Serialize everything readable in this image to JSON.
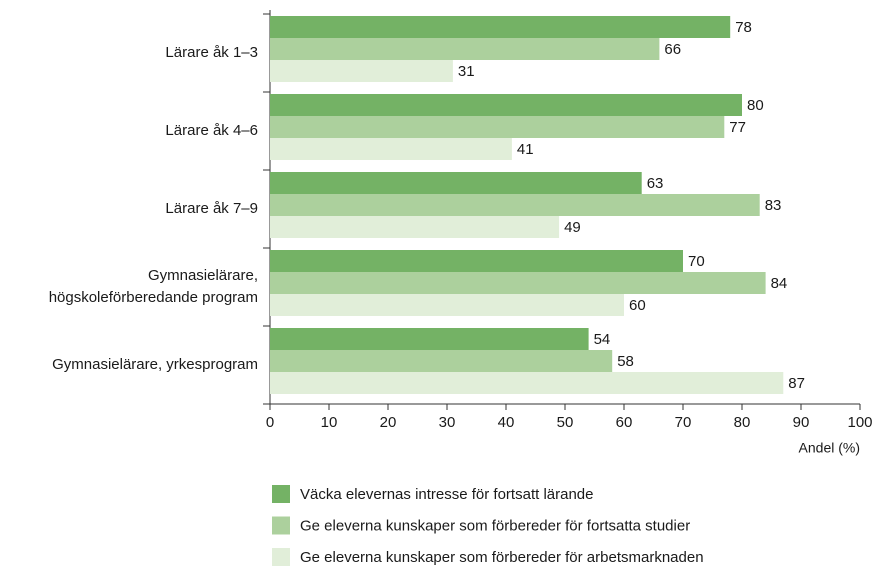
{
  "chart_data": {
    "type": "bar",
    "orientation": "horizontal",
    "categories": [
      "Lärare åk 1–3",
      "Lärare åk 4–6",
      "Lärare åk 7–9",
      "Gymnasielärare,\nhögskoleförberedande program",
      "Gymnasielärare, yrkesprogram"
    ],
    "series": [
      {
        "name": "Väcka elevernas intresse för fortsatt lärande",
        "color": "#74b265",
        "values": [
          78,
          80,
          63,
          70,
          54
        ]
      },
      {
        "name": "Ge eleverna kunskaper som förbereder för fortsatta studier",
        "color": "#acd09d",
        "values": [
          66,
          77,
          83,
          84,
          58
        ]
      },
      {
        "name": "Ge eleverna kunskaper som förbereder för arbetsmarknaden",
        "color": "#e1eed9",
        "values": [
          31,
          41,
          49,
          60,
          87
        ]
      }
    ],
    "xlabel": "Andel (%)",
    "xlim": [
      0,
      100
    ],
    "xticks": [
      0,
      10,
      20,
      30,
      40,
      50,
      60,
      70,
      80,
      90,
      100
    ]
  }
}
